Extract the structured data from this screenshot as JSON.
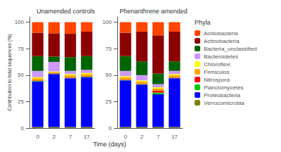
{
  "chart_data": [
    {
      "type": "bar",
      "title": "Unamended controls",
      "xlabel": "Time (days)",
      "ylabel": "Contribution to total sequences (%)",
      "categories": [
        "0",
        "2",
        "7",
        "17"
      ],
      "stacked": true,
      "grid": false,
      "ylim": [
        0,
        105
      ],
      "yticks": [
        0,
        25,
        50,
        75,
        100
      ],
      "series": [
        {
          "name": "Verrucomicrobia",
          "color": "#808000",
          "values": [
            1.0,
            1.0,
            1.0,
            1.0
          ]
        },
        {
          "name": "Proteobacteria",
          "color": "#0000ff",
          "values": [
            43.0,
            50.0,
            46.0,
            47.0
          ]
        },
        {
          "name": "Planctomycetes",
          "color": "#00cc00",
          "values": [
            0.5,
            0.5,
            0.5,
            0.5
          ]
        },
        {
          "name": "Nitrospora",
          "color": "#ff0000",
          "values": [
            0.5,
            0.5,
            0.5,
            0.5
          ]
        },
        {
          "name": "Firmiculos",
          "color": "#ffa500",
          "values": [
            2.0,
            1.0,
            2.0,
            2.0
          ]
        },
        {
          "name": "Chloroflexi",
          "color": "#ffff00",
          "values": [
            1.0,
            0.5,
            1.0,
            1.0
          ]
        },
        {
          "name": "Bacteroidetes",
          "color": "#cc99ff",
          "values": [
            6.0,
            9.0,
            3.0,
            3.0
          ]
        },
        {
          "name": "Bacteria_unclassified",
          "color": "#006400",
          "values": [
            14.0,
            5.0,
            13.0,
            13.0
          ]
        },
        {
          "name": "Actinobacteria",
          "color": "#8b0000",
          "values": [
            22.0,
            22.0,
            22.0,
            23.0
          ]
        },
        {
          "name": "Acidobacteria",
          "color": "#ff4500",
          "values": [
            10.0,
            10.5,
            11.0,
            9.0
          ]
        }
      ]
    },
    {
      "type": "bar",
      "title": "Phenanthrene amended",
      "categories": [
        "0",
        "2",
        "7",
        "17"
      ],
      "stacked": true,
      "grid": false,
      "ylim": [
        0,
        105
      ],
      "yticks": [
        0,
        25,
        50,
        75,
        100
      ],
      "legend": "right",
      "legend_title": "Phyla",
      "series": [
        {
          "name": "Verrucomicrobia",
          "color": "#808000",
          "values": [
            1.0,
            1.0,
            1.0,
            1.0
          ]
        },
        {
          "name": "Proteobacteria",
          "color": "#0000ff",
          "values": [
            44.0,
            40.0,
            31.0,
            46.0
          ]
        },
        {
          "name": "Planctomycetes",
          "color": "#00cc00",
          "values": [
            0.5,
            0.5,
            1.5,
            0.5
          ]
        },
        {
          "name": "Nitrospora",
          "color": "#ff0000",
          "values": [
            0.5,
            0.5,
            2.0,
            0.5
          ]
        },
        {
          "name": "Firmiculos",
          "color": "#ffa500",
          "values": [
            2.0,
            2.0,
            2.0,
            2.0
          ]
        },
        {
          "name": "Chloroflexi",
          "color": "#ffff00",
          "values": [
            1.0,
            1.0,
            1.0,
            1.0
          ]
        },
        {
          "name": "Bacteroidetes",
          "color": "#cc99ff",
          "values": [
            5.0,
            5.0,
            3.0,
            3.0
          ]
        },
        {
          "name": "Bacteria_unclassified",
          "color": "#006400",
          "values": [
            14.0,
            13.0,
            10.0,
            9.0
          ]
        },
        {
          "name": "Actinobacteria",
          "color": "#8b0000",
          "values": [
            22.0,
            28.0,
            36.0,
            28.0
          ]
        },
        {
          "name": "Acidobacteria",
          "color": "#ff4500",
          "values": [
            10.0,
            9.0,
            12.5,
            9.0
          ]
        }
      ]
    }
  ]
}
